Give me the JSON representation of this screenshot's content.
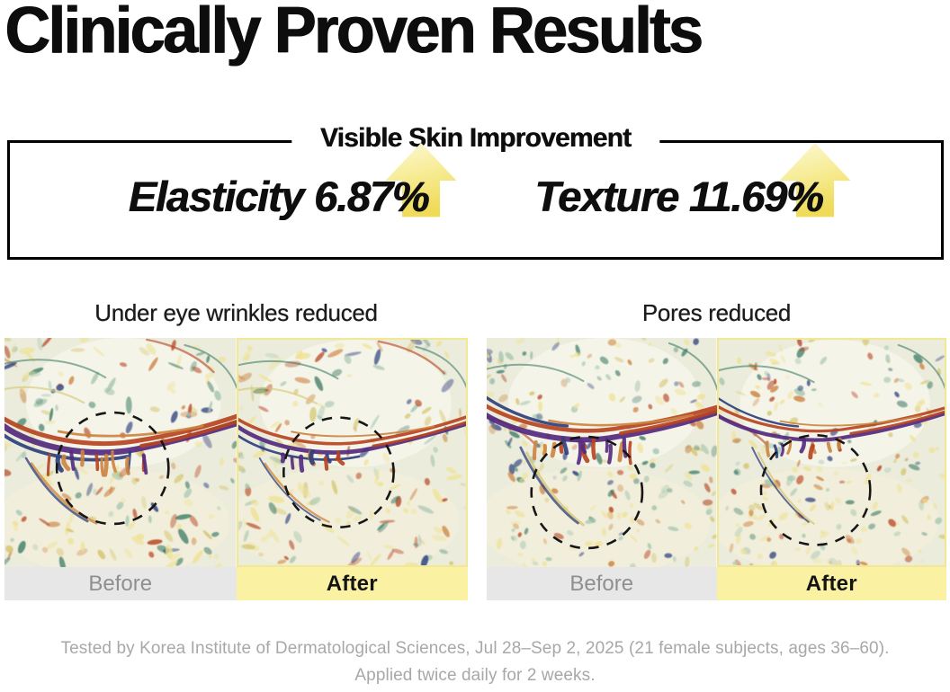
{
  "title": "Clinically Proven Results",
  "improvement_box": {
    "title": "Visible Skin Improvement",
    "stats": [
      {
        "label": "Elasticity",
        "value": "6.87%"
      },
      {
        "label": "Texture",
        "value": "11.69%"
      }
    ]
  },
  "sections": [
    {
      "title": "Under eye wrinkles reduced",
      "before_label": "Before",
      "after_label": "After"
    },
    {
      "title": "Pores reduced",
      "before_label": "Before",
      "after_label": "After"
    }
  ],
  "footnote": {
    "line1": "Tested by Korea Institute of Dermatological Sciences, Jul 28–Sep 2, 2025 (21 female subjects, ages 36–60).",
    "line2": "Applied twice daily for 2 weeks."
  },
  "colors": {
    "accent_arrow_top": "#fdf9d9",
    "accent_arrow_mid": "#f7ec96",
    "accent_arrow_bottom": "#efdb58",
    "after_label_bg": "#faf1a2",
    "after_image_border": "#f2e793",
    "before_label_bg": "#e7e7e7",
    "before_label_text": "#8f8f8f",
    "footnote_text": "#a8a8a8",
    "skin_palette": {
      "base": "#ebecdc",
      "highlight": "#f5f4e9",
      "lower": "#f3f0da",
      "pale_yellow": "#efe294",
      "light_teal": "#a5c6b0",
      "teal": "#417e68",
      "olive": "#d5c671",
      "navy": "#2c3e7c",
      "orange": "#cc8440",
      "red": "#b6431f",
      "purple": "#53297e"
    }
  }
}
